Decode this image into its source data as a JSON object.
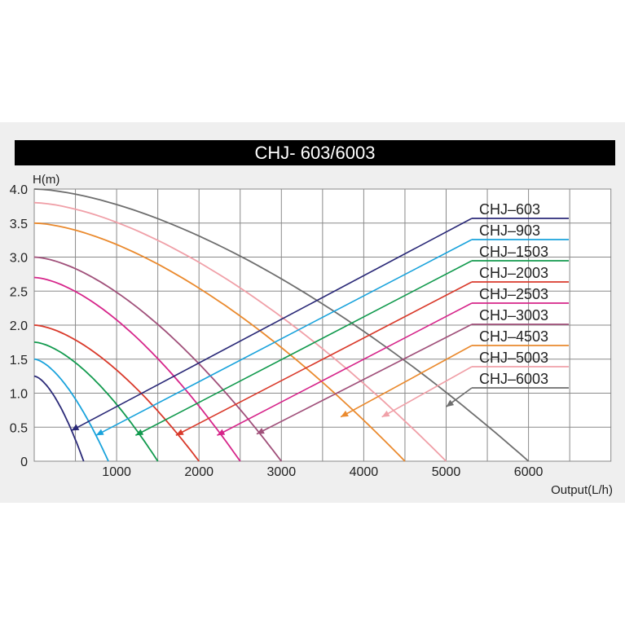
{
  "chart_data": {
    "type": "line",
    "title": "CHJ- 603/6003",
    "ylabel": "H(m)",
    "xlabel": "Output(L/h)",
    "xlim": [
      0,
      7000
    ],
    "ylim": [
      0,
      4.0
    ],
    "x_ticks": [
      {
        "value": 1000,
        "label": "1000"
      },
      {
        "value": 2000,
        "label": "2000"
      },
      {
        "value": 3000,
        "label": "3000"
      },
      {
        "value": 4000,
        "label": "4000"
      },
      {
        "value": 5000,
        "label": "5000"
      },
      {
        "value": 6000,
        "label": "6000"
      }
    ],
    "y_ticks": [
      {
        "value": 0,
        "label": "0"
      },
      {
        "value": 0.5,
        "label": "0.5"
      },
      {
        "value": 1.0,
        "label": "1.0"
      },
      {
        "value": 1.5,
        "label": "1.5"
      },
      {
        "value": 2.0,
        "label": "2.0"
      },
      {
        "value": 2.5,
        "label": "2.5"
      },
      {
        "value": 3.0,
        "label": "3.0"
      },
      {
        "value": 3.5,
        "label": "3.5"
      },
      {
        "value": 4.0,
        "label": "4.0"
      }
    ],
    "grid": true,
    "legend_position": "right",
    "series": [
      {
        "name": "CHJ–603",
        "color": "#2b2a78",
        "h0": 1.25,
        "qmax": 600,
        "pointer_x": 450,
        "pointer_y": 0.45
      },
      {
        "name": "CHJ–903",
        "color": "#1aa3dc",
        "h0": 1.5,
        "qmax": 900,
        "pointer_x": 750,
        "pointer_y": 0.38
      },
      {
        "name": "CHJ–1503",
        "color": "#129a4e",
        "h0": 1.75,
        "qmax": 1500,
        "pointer_x": 1230,
        "pointer_y": 0.38
      },
      {
        "name": "CHJ–2003",
        "color": "#d93a2b",
        "h0": 2.0,
        "qmax": 2000,
        "pointer_x": 1720,
        "pointer_y": 0.38
      },
      {
        "name": "CHJ–2503",
        "color": "#d6258a",
        "h0": 2.7,
        "qmax": 2500,
        "pointer_x": 2220,
        "pointer_y": 0.38
      },
      {
        "name": "CHJ–3003",
        "color": "#a0507a",
        "h0": 3.0,
        "qmax": 3000,
        "pointer_x": 2700,
        "pointer_y": 0.4
      },
      {
        "name": "CHJ–4503",
        "color": "#ea8a2e",
        "h0": 3.5,
        "qmax": 4500,
        "pointer_x": 3720,
        "pointer_y": 0.65
      },
      {
        "name": "CHJ–5003",
        "color": "#f0a0a8",
        "h0": 3.8,
        "qmax": 5000,
        "pointer_x": 4220,
        "pointer_y": 0.65
      },
      {
        "name": "CHJ–6003",
        "color": "#6e6e6e",
        "h0": 4.0,
        "qmax": 6000,
        "pointer_x": 5000,
        "pointer_y": 0.8
      }
    ]
  }
}
